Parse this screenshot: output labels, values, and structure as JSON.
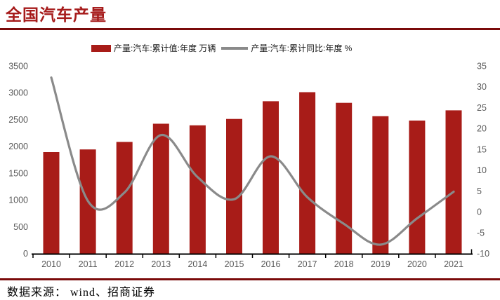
{
  "page": {
    "title": "全国汽车产量",
    "source": "数据来源： wind、招商证券"
  },
  "colors": {
    "bar": "#A81C18",
    "line": "#8A8A8A",
    "title": "#A61B1B",
    "rule": "#7A0A0A",
    "axis_label": "#595959",
    "axis_line": "#000000",
    "legend_text": "#1A1A1A",
    "background": "#FFFFFF"
  },
  "legend": {
    "items": [
      {
        "swatch": "bar",
        "label": "产量:汽车:累计值:年度 万辆"
      },
      {
        "swatch": "line",
        "label": "产量:汽车:累计同比:年度 %"
      }
    ]
  },
  "chart_data": {
    "type": "bar",
    "title": "全国汽车产量",
    "categories": [
      "2010",
      "2011",
      "2012",
      "2013",
      "2014",
      "2015",
      "2016",
      "2017",
      "2018",
      "2019",
      "2020",
      "2021"
    ],
    "series": [
      {
        "name": "产量:汽车:累计值:年度",
        "unit": "万辆",
        "type": "bar",
        "axis": "left",
        "values": [
          1890,
          1940,
          2080,
          2420,
          2390,
          2510,
          2840,
          3010,
          2810,
          2560,
          2480,
          2670
        ]
      },
      {
        "name": "产量:汽车:累计同比:年度",
        "unit": "%",
        "type": "line",
        "axis": "right",
        "values": [
          32.2,
          2.6,
          4.6,
          18.4,
          8.3,
          3.0,
          13.3,
          3.5,
          -2.9,
          -7.9,
          -1.6,
          4.8
        ]
      }
    ],
    "left_axis": {
      "min": 0,
      "max": 3500,
      "step": 500,
      "ticks": [
        0,
        500,
        1000,
        1500,
        2000,
        2500,
        3000,
        3500
      ]
    },
    "right_axis": {
      "min": -10,
      "max": 35,
      "step": 5,
      "ticks": [
        -10,
        -5,
        0,
        5,
        10,
        15,
        20,
        25,
        30,
        35
      ]
    },
    "grid": false,
    "legend_position": "top",
    "smooth_line": true
  }
}
